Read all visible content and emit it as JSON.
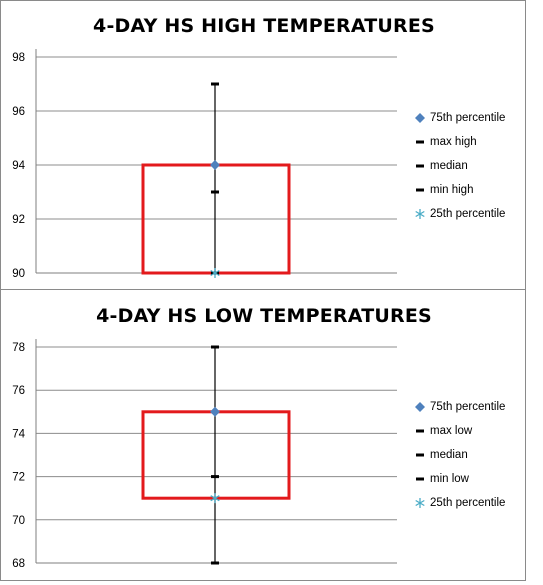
{
  "colors": {
    "box": "#e31a1c",
    "whisker": "#000000",
    "p75_marker": "#4f81bd",
    "p25_marker": "#4bacc6",
    "grid": "#8c8c8c",
    "axis": "#7f7f7f"
  },
  "chart_data": [
    {
      "type": "box",
      "title": "4-DAY HS HIGH TEMPERATURES",
      "ylim": [
        90,
        98
      ],
      "yticks": [
        "90",
        "92",
        "94",
        "96",
        "98"
      ],
      "grid": true,
      "legend_position": "right",
      "legend": [
        "75th percentile",
        "max high",
        "median",
        "min high",
        "25th percentile"
      ],
      "stats": {
        "p75": 94,
        "max": 97,
        "median": 93,
        "min": 90,
        "p25": 90
      }
    },
    {
      "type": "box",
      "title": "4-DAY HS LOW TEMPERATURES",
      "ylim": [
        68,
        78
      ],
      "yticks": [
        "68",
        "70",
        "72",
        "74",
        "76",
        "78"
      ],
      "grid": true,
      "legend_position": "right",
      "legend": [
        "75th percentile",
        "max low",
        "median",
        "min low",
        "25th percentile"
      ],
      "stats": {
        "p75": 75,
        "max": 78,
        "median": 72,
        "min": 68,
        "p25": 71
      }
    }
  ]
}
